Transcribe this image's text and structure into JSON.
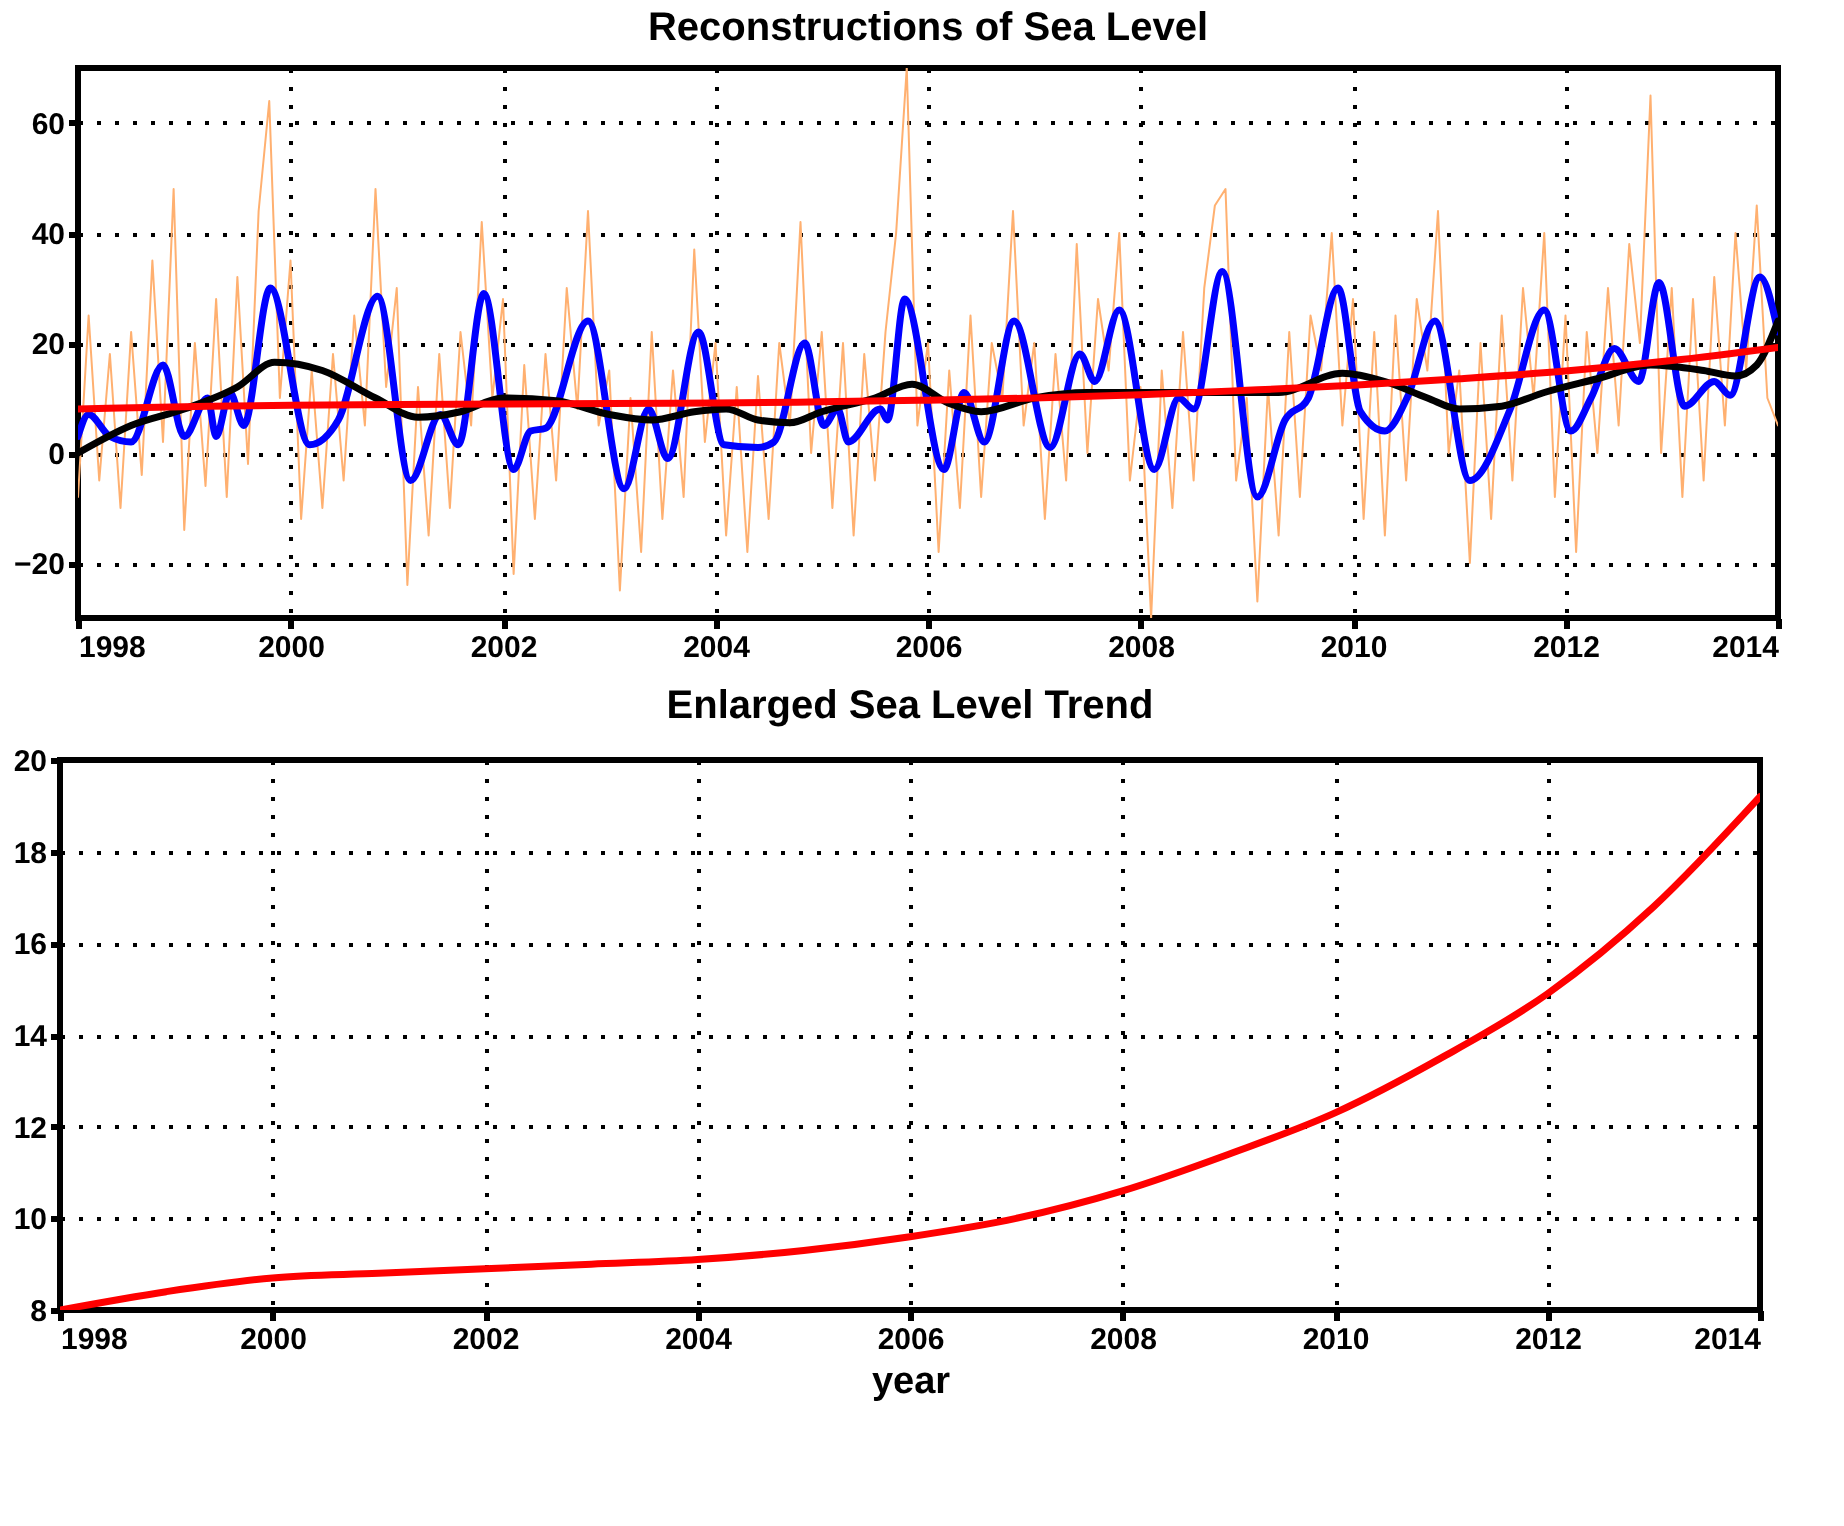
{
  "chart_data": [
    {
      "type": "line",
      "title": "Reconstructions of Sea Level",
      "xlim": [
        1998,
        2014
      ],
      "xticks": [
        1998,
        2000,
        2002,
        2004,
        2006,
        2008,
        2010,
        2012,
        2014
      ],
      "ylim": [
        -30,
        70
      ],
      "yticks": [
        -20,
        0,
        20,
        40,
        60
      ],
      "grid": true,
      "series": [
        {
          "color": "#ffb070",
          "x": [
            1998.0,
            1998.1,
            1998.2,
            1998.3,
            1998.4,
            1998.5,
            1998.6,
            1998.7,
            1998.8,
            1998.9,
            1999.0,
            1999.1,
            1999.2,
            1999.3,
            1999.4,
            1999.5,
            1999.6,
            1999.7,
            1999.8,
            1999.9,
            2000.0,
            2000.1,
            2000.2,
            2000.3,
            2000.4,
            2000.5,
            2000.6,
            2000.7,
            2000.8,
            2000.9,
            2001.0,
            2001.1,
            2001.2,
            2001.3,
            2001.4,
            2001.5,
            2001.6,
            2001.7,
            2001.8,
            2001.9,
            2002.0,
            2002.1,
            2002.2,
            2002.3,
            2002.4,
            2002.5,
            2002.6,
            2002.7,
            2002.8,
            2002.9,
            2003.0,
            2003.1,
            2003.2,
            2003.3,
            2003.4,
            2003.5,
            2003.6,
            2003.7,
            2003.8,
            2003.9,
            2004.0,
            2004.1,
            2004.2,
            2004.3,
            2004.4,
            2004.5,
            2004.6,
            2004.7,
            2004.8,
            2004.9,
            2005.0,
            2005.1,
            2005.2,
            2005.3,
            2005.4,
            2005.5,
            2005.6,
            2005.7,
            2005.8,
            2005.9,
            2006.0,
            2006.1,
            2006.2,
            2006.3,
            2006.4,
            2006.5,
            2006.6,
            2006.7,
            2006.8,
            2006.9,
            2007.0,
            2007.1,
            2007.2,
            2007.3,
            2007.4,
            2007.5,
            2007.6,
            2007.7,
            2007.8,
            2007.9,
            2008.0,
            2008.1,
            2008.2,
            2008.3,
            2008.4,
            2008.5,
            2008.6,
            2008.7,
            2008.8,
            2008.9,
            2009.0,
            2009.1,
            2009.2,
            2009.3,
            2009.4,
            2009.5,
            2009.6,
            2009.7,
            2009.8,
            2009.9,
            2010.0,
            2010.1,
            2010.2,
            2010.3,
            2010.4,
            2010.5,
            2010.6,
            2010.7,
            2010.8,
            2010.9,
            2011.0,
            2011.1,
            2011.2,
            2011.3,
            2011.4,
            2011.5,
            2011.6,
            2011.7,
            2011.8,
            2011.9,
            2012.0,
            2012.1,
            2012.2,
            2012.3,
            2012.4,
            2012.5,
            2012.6,
            2012.7,
            2012.8,
            2012.9,
            2013.0,
            2013.1,
            2013.2,
            2013.3,
            2013.4,
            2013.5,
            2013.6,
            2013.7,
            2013.8,
            2013.9,
            2014.0
          ],
          "values": [
            -8,
            25,
            -5,
            18,
            -10,
            22,
            -4,
            35,
            2,
            48,
            -14,
            20,
            -6,
            28,
            -8,
            32,
            -2,
            44,
            64,
            10,
            35,
            -12,
            15,
            -10,
            18,
            -5,
            25,
            5,
            48,
            12,
            30,
            -24,
            12,
            -15,
            18,
            -10,
            22,
            5,
            42,
            10,
            28,
            -22,
            16,
            -12,
            18,
            -5,
            30,
            8,
            44,
            5,
            15,
            -25,
            10,
            -18,
            22,
            -12,
            15,
            -8,
            37,
            2,
            20,
            -15,
            12,
            -18,
            14,
            -12,
            20,
            5,
            42,
            0,
            22,
            -10,
            20,
            -15,
            18,
            -5,
            22,
            40,
            70,
            5,
            20,
            -18,
            15,
            -10,
            25,
            -8,
            20,
            10,
            44,
            5,
            20,
            -12,
            18,
            -5,
            38,
            0,
            28,
            15,
            40,
            -5,
            12,
            -30,
            15,
            -10,
            22,
            -5,
            30,
            45,
            48,
            -5,
            10,
            -27,
            12,
            -15,
            22,
            -8,
            25,
            15,
            40,
            5,
            28,
            -12,
            22,
            -15,
            25,
            -5,
            28,
            15,
            44,
            0,
            15,
            -20,
            20,
            -12,
            25,
            -5,
            30,
            10,
            40,
            -8,
            25,
            -18,
            22,
            0,
            30,
            5,
            38,
            20,
            65,
            0,
            30,
            -8,
            28,
            -5,
            32,
            5,
            40,
            15,
            45,
            10,
            5
          ]
        },
        {
          "color": "#0000ff",
          "x": [
            1998.0,
            1998.1,
            1998.3,
            1998.5,
            1998.8,
            1999.0,
            1999.22,
            1999.3,
            1999.43,
            1999.56,
            1999.81,
            2000.18,
            2000.45,
            2000.82,
            2001.13,
            2001.41,
            2001.58,
            2001.82,
            2002.1,
            2002.26,
            2002.4,
            2002.8,
            2003.14,
            2003.37,
            2003.55,
            2003.84,
            2004.08,
            2004.4,
            2004.55,
            2004.84,
            2005.02,
            2005.15,
            2005.25,
            2005.55,
            2005.62,
            2005.78,
            2006.15,
            2006.34,
            2006.53,
            2006.81,
            2007.15,
            2007.43,
            2007.57,
            2007.8,
            2008.13,
            2008.36,
            2008.5,
            2008.77,
            2009.1,
            2009.36,
            2009.58,
            2009.86,
            2010.07,
            2010.3,
            2010.52,
            2010.77,
            2011.1,
            2011.48,
            2011.8,
            2012.05,
            2012.24,
            2012.46,
            2012.69,
            2012.88,
            2013.12,
            2013.4,
            2013.55,
            2013.83,
            2014.0
          ],
          "values": [
            3,
            7,
            3,
            2,
            16,
            3,
            10,
            3,
            11,
            5,
            30,
            1.5,
            6,
            28.5,
            -5,
            7,
            1.5,
            29,
            -3,
            4,
            4.5,
            24,
            -6.5,
            8,
            -1,
            22,
            1.5,
            1,
            2,
            20,
            5,
            8,
            2,
            8,
            6,
            28,
            -3,
            11,
            2,
            24,
            1,
            18,
            13,
            26,
            -3,
            10,
            8,
            33,
            -8,
            6,
            10,
            30,
            7.5,
            4,
            10.5,
            24,
            -5,
            8,
            26,
            4,
            10,
            19,
            13,
            31,
            8.5,
            13,
            10.5,
            32,
            22
          ]
        },
        {
          "color": "#000000",
          "x": [
            1998.0,
            1998.5,
            1999.0,
            1999.5,
            1999.85,
            2000.3,
            2000.8,
            2001.2,
            2001.6,
            2002.0,
            2002.5,
            2003.0,
            2003.4,
            2003.8,
            2004.1,
            2004.4,
            2004.7,
            2005.0,
            2005.5,
            2005.85,
            2006.2,
            2006.5,
            2007.0,
            2007.5,
            2008.2,
            2008.8,
            2009.3,
            2009.9,
            2010.3,
            2010.7,
            2011.0,
            2011.4,
            2011.8,
            2012.3,
            2012.8,
            2013.3,
            2013.6,
            2013.8,
            2014.0
          ],
          "values": [
            0,
            5,
            8,
            12,
            16.5,
            15,
            10,
            6.5,
            7.5,
            10,
            9.5,
            7,
            6,
            7.5,
            8,
            6,
            5.5,
            7.5,
            10,
            12.5,
            9,
            7.5,
            10,
            11,
            11,
            11,
            11,
            14.5,
            13,
            10,
            8,
            8.5,
            11,
            13.5,
            16,
            15,
            14,
            16,
            24
          ]
        },
        {
          "color": "#ff0000",
          "x": [
            1998,
            1999,
            2000,
            2001,
            2002,
            2003,
            2004,
            2005,
            2006,
            2007,
            2008,
            2009,
            2010,
            2011,
            2012,
            2013,
            2014
          ],
          "values": [
            8,
            8.4,
            8.7,
            8.8,
            8.9,
            9.0,
            9.1,
            9.3,
            9.6,
            10.0,
            10.6,
            11.4,
            12.3,
            13.5,
            14.9,
            16.8,
            19.2
          ]
        }
      ]
    },
    {
      "type": "line",
      "title": "Enlarged Sea Level Trend",
      "xlabel": "year",
      "xlim": [
        1998,
        2014
      ],
      "xticks": [
        1998,
        2000,
        2002,
        2004,
        2006,
        2008,
        2010,
        2012,
        2014
      ],
      "ylim": [
        8,
        20
      ],
      "yticks": [
        8,
        10,
        12,
        14,
        16,
        18,
        20
      ],
      "grid": true,
      "series": [
        {
          "color": "#ff0000",
          "x": [
            1998,
            1999,
            2000,
            2001,
            2002,
            2003,
            2004,
            2005,
            2006,
            2007,
            2008,
            2009,
            2010,
            2011,
            2012,
            2013,
            2014
          ],
          "values": [
            8,
            8.4,
            8.7,
            8.8,
            8.9,
            9.0,
            9.1,
            9.3,
            9.6,
            10.0,
            10.6,
            11.4,
            12.3,
            13.5,
            14.9,
            16.8,
            19.2
          ]
        }
      ]
    }
  ]
}
